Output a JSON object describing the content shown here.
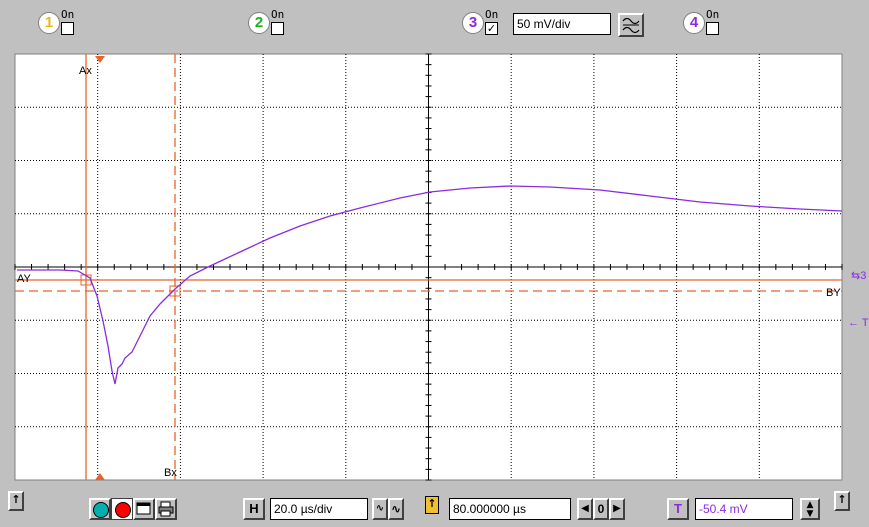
{
  "channels": [
    {
      "num": "1",
      "on_label": "On",
      "checked": false,
      "color": "#f0c030"
    },
    {
      "num": "2",
      "on_label": "On",
      "checked": false,
      "color": "#30c030"
    },
    {
      "num": "3",
      "on_label": "On",
      "checked": true,
      "color": "#8a2be2",
      "scale": "50 mV/div"
    },
    {
      "num": "4",
      "on_label": "On",
      "checked": false,
      "color": "#8a2be2"
    }
  ],
  "cursors": {
    "ax_label": "Ax",
    "bx_label": "Bx",
    "ay_label": "AY",
    "by_label": "BY",
    "trace_marker": "3",
    "trigger_marker": "T",
    "color": "#e8652a"
  },
  "trace_color": "#8a2be2",
  "bottom": {
    "h_label": "H",
    "timebase": "20.0 µs/div",
    "position": "80.000000 µs",
    "zero_label": "0",
    "t_label": "T",
    "trigger_level": "-50.4 mV"
  },
  "icons": [
    "arrow-up-icon",
    "teal-dot-icon",
    "red-dot-icon",
    "window-icon",
    "printer-icon"
  ]
}
